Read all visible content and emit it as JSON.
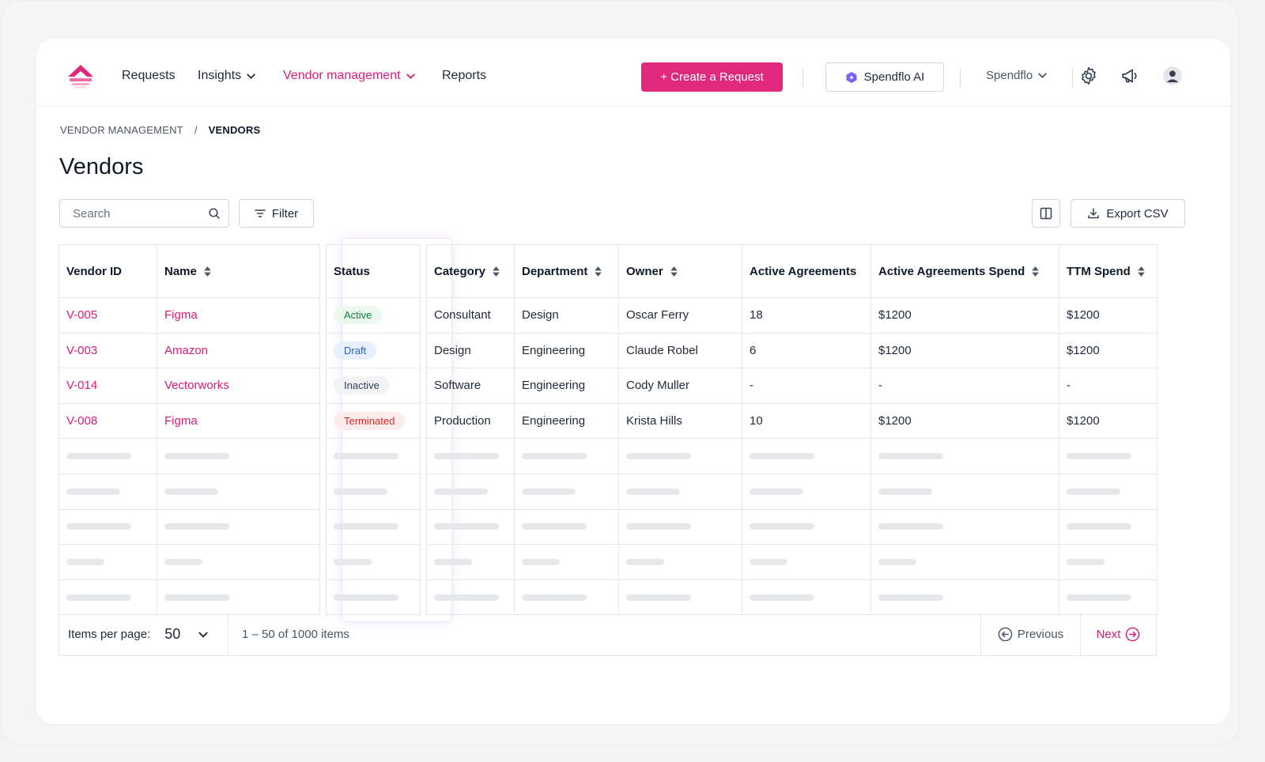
{
  "nav": {
    "items": [
      {
        "label": "Requests",
        "dropdown": false,
        "active": false
      },
      {
        "label": "Insights",
        "dropdown": true,
        "active": false
      },
      {
        "label": "Vendor management",
        "dropdown": true,
        "active": true
      },
      {
        "label": "Reports",
        "dropdown": false,
        "active": false
      }
    ],
    "create_label": "+ Create a Request",
    "ai_label": "Spendflo AI",
    "org_label": "Spendflo",
    "icons": [
      "gear-icon",
      "megaphone-icon",
      "user-avatar-icon"
    ],
    "accent": "#e0287d"
  },
  "breadcrumb": {
    "parent": "VENDOR MANAGEMENT",
    "separator": "/",
    "current": "VENDORS"
  },
  "page": {
    "title": "Vendors"
  },
  "toolbar": {
    "search_placeholder": "Search",
    "filter_label": "Filter",
    "export_label": "Export CSV"
  },
  "table": {
    "columns": [
      "Vendor ID",
      "Name",
      "Status",
      "Category",
      "Department",
      "Owner",
      "Active Agreements",
      "Active Agreements Spend",
      "TTM Spend"
    ],
    "rows": [
      {
        "id": "V-005",
        "name": "Figma",
        "status": "Active",
        "category": "Consultant",
        "department": "Design",
        "owner": "Oscar Ferry",
        "agreements": "18",
        "agreements_spend": "$1200",
        "ttm_spend": "$1200"
      },
      {
        "id": "V-003",
        "name": "Amazon",
        "status": "Draft",
        "category": "Design",
        "department": "Engineering",
        "owner": "Claude Robel",
        "agreements": "6",
        "agreements_spend": "$1200",
        "ttm_spend": "$1200"
      },
      {
        "id": "V-014",
        "name": "Vectorworks",
        "status": "Inactive",
        "category": "Software",
        "department": "Engineering",
        "owner": "Cody Muller",
        "agreements": "-",
        "agreements_spend": "-",
        "ttm_spend": "-"
      },
      {
        "id": "V-008",
        "name": "Figma",
        "status": "Terminated",
        "category": "Production",
        "department": "Engineering",
        "owner": "Krista Hills",
        "agreements": "10",
        "agreements_spend": "$1200",
        "ttm_spend": "$1200"
      }
    ],
    "skeleton_rows": 5
  },
  "pagination": {
    "items_per_page_label": "Items per page:",
    "items_per_page": "50",
    "range_text": "1 – 50 of 1000 items",
    "previous_label": "Previous",
    "next_label": "Next"
  }
}
